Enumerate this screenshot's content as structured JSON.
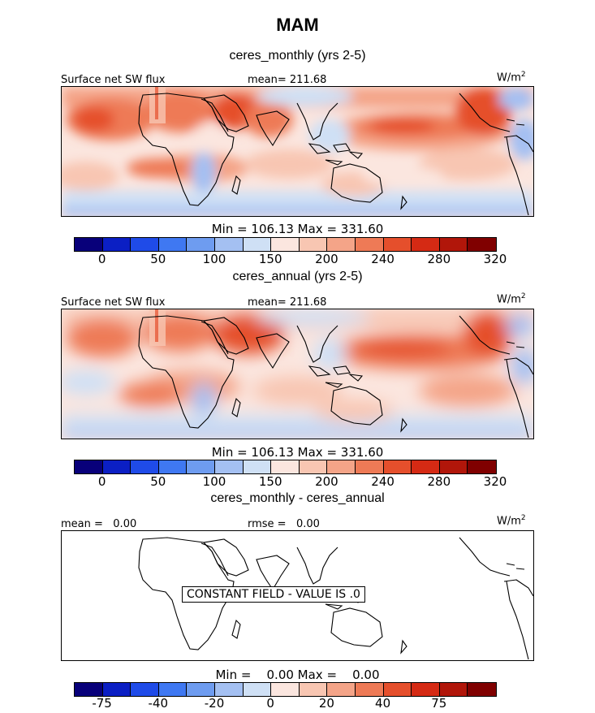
{
  "title": "MAM",
  "panels": [
    {
      "subtitle": "ceres_monthly (yrs 2-5)",
      "left_label": "Surface net SW flux",
      "center_label": "mean= 211.68",
      "units": "W/m",
      "units_exp": "2",
      "stats": "Min = 106.13 Max = 331.60",
      "tick_labels": [
        "0",
        "50",
        "100",
        "150",
        "200",
        "240",
        "280",
        "320"
      ]
    },
    {
      "subtitle": "ceres_annual (yrs 2-5)",
      "left_label": "Surface net SW flux",
      "center_label": "mean= 211.68",
      "units": "W/m",
      "units_exp": "2",
      "stats": "Min = 106.13 Max = 331.60",
      "tick_labels": [
        "0",
        "50",
        "100",
        "150",
        "200",
        "240",
        "280",
        "320"
      ]
    },
    {
      "subtitle": "ceres_monthly - ceres_annual",
      "left_label": "mean =   0.00",
      "center_label": "rmse =   0.00",
      "units": "W/m",
      "units_exp": "2",
      "stats": "Min =    0.00 Max =    0.00",
      "message": "CONSTANT FIELD - VALUE IS .0",
      "tick_labels": [
        "-75",
        "-40",
        "-20",
        "0",
        "20",
        "40",
        "75"
      ]
    }
  ],
  "colorbar_colors": [
    "#08007a",
    "#0b1fc4",
    "#1f4be8",
    "#3f78f2",
    "#6e9cf0",
    "#a4c0f2",
    "#cfe0f5",
    "#fbe6df",
    "#f8c6b2",
    "#f4a488",
    "#ee7a56",
    "#e54f2c",
    "#d52a14",
    "#b1160a",
    "#800000"
  ],
  "chart_data": [
    {
      "type": "heatmap",
      "title": "ceres_monthly (yrs 2-5)",
      "variable": "Surface net SW flux",
      "units": "W/m2",
      "mean": 211.68,
      "min": 106.13,
      "max": 331.6,
      "colorbar_levels": [
        0,
        25,
        50,
        75,
        100,
        125,
        150,
        175,
        200,
        220,
        240,
        260,
        280,
        300,
        320
      ]
    },
    {
      "type": "heatmap",
      "title": "ceres_annual (yrs 2-5)",
      "variable": "Surface net SW flux",
      "units": "W/m2",
      "mean": 211.68,
      "min": 106.13,
      "max": 331.6,
      "colorbar_levels": [
        0,
        25,
        50,
        75,
        100,
        125,
        150,
        175,
        200,
        220,
        240,
        260,
        280,
        300,
        320
      ]
    },
    {
      "type": "heatmap",
      "title": "ceres_monthly - ceres_annual",
      "units": "W/m2",
      "mean": 0.0,
      "rmse": 0.0,
      "min": 0.0,
      "max": 0.0,
      "note": "CONSTANT FIELD - VALUE IS .0",
      "colorbar_levels": [
        -100,
        -75,
        -50,
        -40,
        -30,
        -20,
        -10,
        0,
        10,
        20,
        30,
        40,
        50,
        75,
        100
      ]
    }
  ]
}
